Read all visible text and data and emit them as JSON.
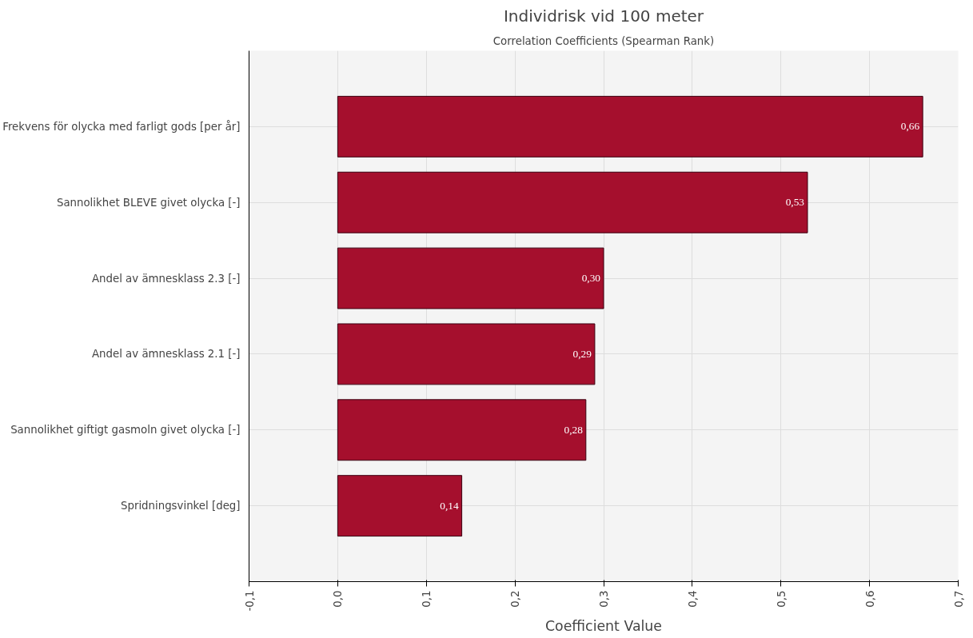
{
  "chart_data": {
    "type": "bar",
    "orientation": "horizontal",
    "title": "Individrisk vid 100 meter",
    "subtitle": "Correlation Coefficients (Spearman Rank)",
    "xlabel": "Coefficient Value",
    "categories": [
      "Frekvens för olycka med farligt gods [per år]",
      "Sannolikhet BLEVE givet olycka [-]",
      "Andel av ämnesklass 2.3 [-]",
      "Andel av ämnesklass 2.1 [-]",
      "Sannolikhet giftigt gasmoln givet olycka [-]",
      "Spridningsvinkel [deg]"
    ],
    "values": [
      0.66,
      0.53,
      0.3,
      0.29,
      0.28,
      0.14
    ],
    "value_labels": [
      "0,66",
      "0,53",
      "0,30",
      "0,29",
      "0,28",
      "0,14"
    ],
    "color": "#a50f2d",
    "xlim": [
      -0.1,
      0.7
    ],
    "xticks": [
      {
        "value": -0.1,
        "label": "-0,1"
      },
      {
        "value": 0.0,
        "label": "0,0"
      },
      {
        "value": 0.1,
        "label": "0,1"
      },
      {
        "value": 0.2,
        "label": "0,2"
      },
      {
        "value": 0.3,
        "label": "0,3"
      },
      {
        "value": 0.4,
        "label": "0,4"
      },
      {
        "value": 0.5,
        "label": "0,5"
      },
      {
        "value": 0.6,
        "label": "0,6"
      },
      {
        "value": 0.7,
        "label": "0,7"
      }
    ],
    "grid": true
  }
}
